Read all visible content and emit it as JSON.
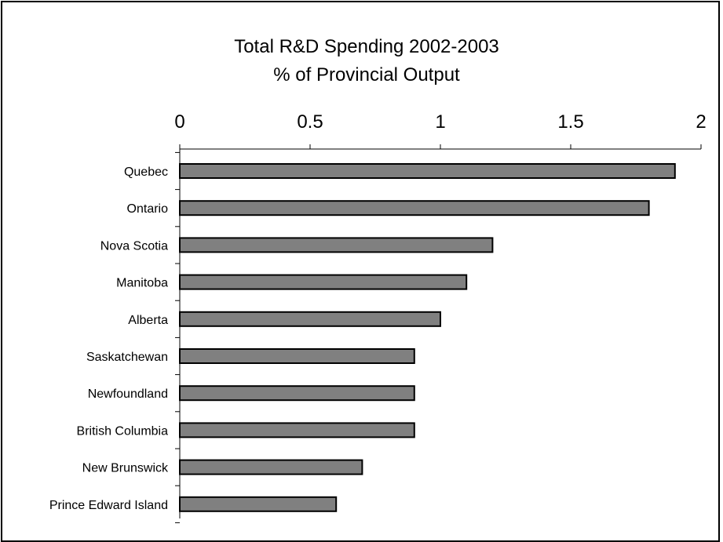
{
  "chart_data": {
    "type": "bar",
    "orientation": "horizontal",
    "title": [
      "Total R&D Spending 2002-2003",
      "% of Provincial Output"
    ],
    "categories": [
      "Quebec",
      "Ontario",
      "Nova Scotia",
      "Manitoba",
      "Alberta",
      "Saskatchewan",
      "Newfoundland",
      "British Columbia",
      "New Brunswick",
      "Prince Edward Island"
    ],
    "values": [
      1.9,
      1.8,
      1.2,
      1.1,
      1.0,
      0.9,
      0.9,
      0.9,
      0.7,
      0.6
    ],
    "xlim": [
      0,
      2
    ],
    "xticks": [
      0,
      0.5,
      1,
      1.5,
      2
    ],
    "xtick_labels": [
      "0",
      "0.5",
      "1",
      "1.5",
      "2"
    ],
    "x_axis_position": "top",
    "grid": false,
    "legend": "none",
    "colors": {
      "bar_fill": "#808080",
      "bar_stroke": "#000000",
      "axis": "#000000",
      "background": "#ffffff"
    }
  }
}
